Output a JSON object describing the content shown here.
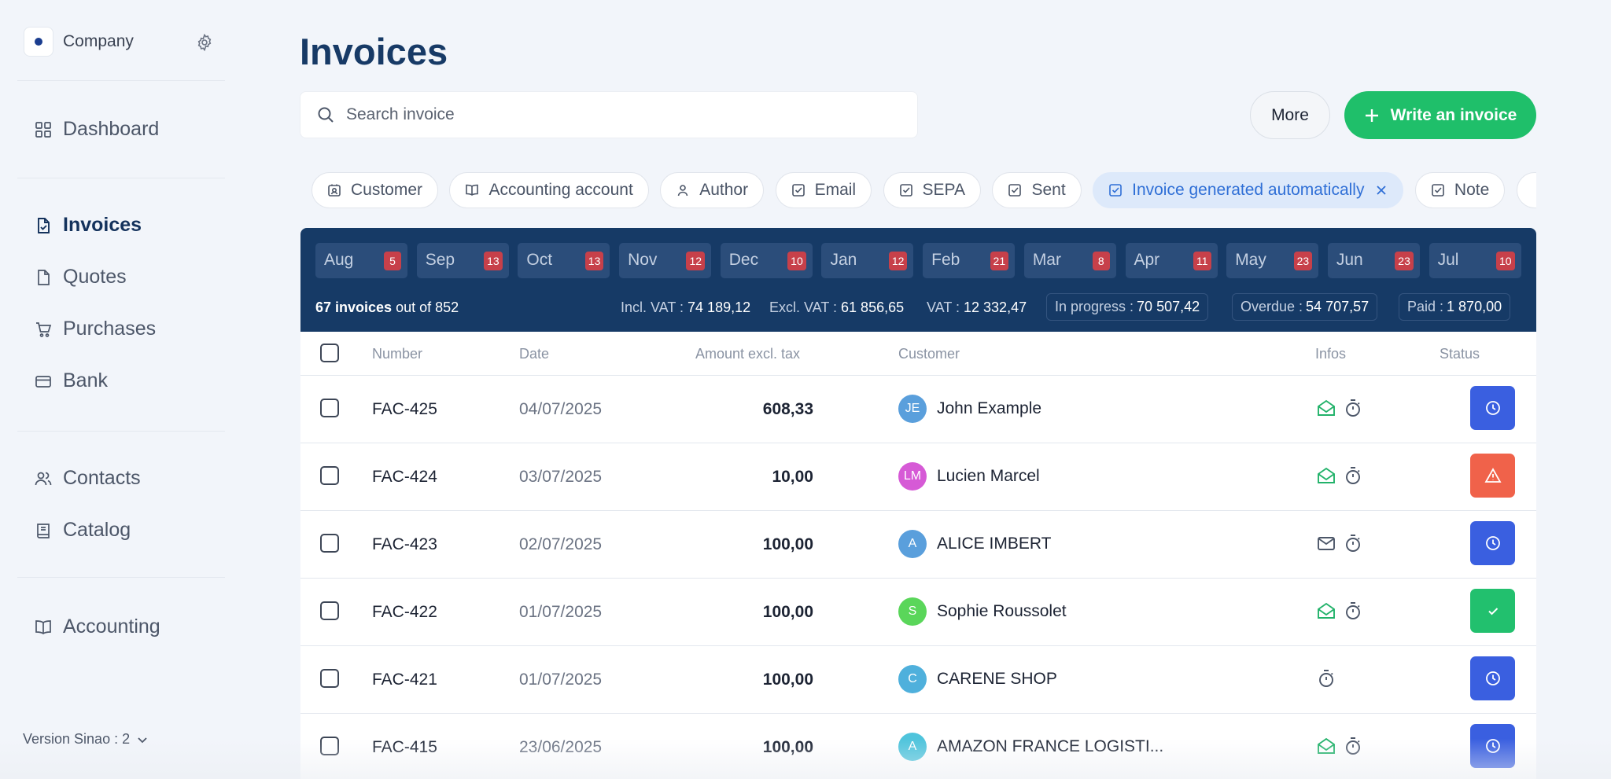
{
  "sidebar": {
    "company": "Company",
    "items": [
      {
        "label": "Dashboard"
      },
      {
        "label": "Invoices"
      },
      {
        "label": "Quotes"
      },
      {
        "label": "Purchases"
      },
      {
        "label": "Bank"
      },
      {
        "label": "Contacts"
      },
      {
        "label": "Catalog"
      },
      {
        "label": "Accounting"
      }
    ],
    "version": "Version Sinao : 2"
  },
  "page": {
    "title": "Invoices"
  },
  "search": {
    "placeholder": "Search invoice"
  },
  "actions": {
    "more": "More",
    "write": "Write an invoice"
  },
  "filters": [
    {
      "label": "Customer",
      "icon": "contact-card-icon"
    },
    {
      "label": "Accounting account",
      "icon": "book-icon"
    },
    {
      "label": "Author",
      "icon": "user-icon"
    },
    {
      "label": "Email",
      "icon": "checkbox-icon"
    },
    {
      "label": "SEPA",
      "icon": "checkbox-icon"
    },
    {
      "label": "Sent",
      "icon": "checkbox-icon"
    },
    {
      "label": "Invoice generated automatically",
      "icon": "checkbox-icon",
      "active": true
    },
    {
      "label": "Note",
      "icon": "checkbox-icon"
    }
  ],
  "months": [
    {
      "label": "Aug",
      "count": "5"
    },
    {
      "label": "Sep",
      "count": "13"
    },
    {
      "label": "Oct",
      "count": "13"
    },
    {
      "label": "Nov",
      "count": "12"
    },
    {
      "label": "Dec",
      "count": "10"
    },
    {
      "label": "Jan",
      "count": "12"
    },
    {
      "label": "Feb",
      "count": "21"
    },
    {
      "label": "Mar",
      "count": "8"
    },
    {
      "label": "Apr",
      "count": "11"
    },
    {
      "label": "May",
      "count": "23"
    },
    {
      "label": "Jun",
      "count": "23"
    },
    {
      "label": "Jul",
      "count": "10"
    }
  ],
  "summary": {
    "count_bold": "67 invoices",
    "count_rest": " out of 852",
    "incl_vat_label": "Incl. VAT : ",
    "incl_vat": "74 189,12",
    "excl_vat_label": "Excl. VAT : ",
    "excl_vat": "61 856,65",
    "vat_label": "VAT : ",
    "vat": "12 332,47",
    "in_progress_label": "In progress :",
    "in_progress": "70 507,42",
    "overdue_label": "Overdue :",
    "overdue": "54 707,57",
    "paid_label": "Paid :",
    "paid": "1 870,00"
  },
  "table": {
    "headers": {
      "number": "Number",
      "date": "Date",
      "amount": "Amount excl. tax",
      "customer": "Customer",
      "infos": "Infos",
      "status": "Status"
    },
    "rows": [
      {
        "number": "FAC-425",
        "date": "04/07/2025",
        "amount": "608,33",
        "initials": "JE",
        "customer": "John Example",
        "avatar_color": "#5a9fdc",
        "mail": "opened",
        "status": "pending"
      },
      {
        "number": "FAC-424",
        "date": "03/07/2025",
        "amount": "10,00",
        "initials": "LM",
        "customer": "Lucien Marcel",
        "avatar_color": "#d65ad6",
        "mail": "opened",
        "status": "overdue"
      },
      {
        "number": "FAC-423",
        "date": "02/07/2025",
        "amount": "100,00",
        "initials": "A",
        "customer": "ALICE IMBERT",
        "avatar_color": "#5a9fdc",
        "mail": "closed",
        "status": "pending"
      },
      {
        "number": "FAC-422",
        "date": "01/07/2025",
        "amount": "100,00",
        "initials": "S",
        "customer": "Sophie Roussolet",
        "avatar_color": "#5ad65a",
        "mail": "opened",
        "status": "paid"
      },
      {
        "number": "FAC-421",
        "date": "01/07/2025",
        "amount": "100,00",
        "initials": "C",
        "customer": "CARENE SHOP",
        "avatar_color": "#4fb0dc",
        "mail": "none",
        "status": "pending"
      },
      {
        "number": "FAC-415",
        "date": "23/06/2025",
        "amount": "100,00",
        "initials": "A",
        "customer": "AMAZON FRANCE LOGISTI...",
        "avatar_color": "#4fc4dc",
        "mail": "opened",
        "status": "pending"
      }
    ]
  },
  "colors": {
    "accent_green": "#1fbf6a",
    "navy": "#163a66",
    "status_pending": "#3a5fe0",
    "status_overdue": "#f0624a",
    "status_paid": "#22c06e",
    "badge_red": "#c7404a"
  }
}
